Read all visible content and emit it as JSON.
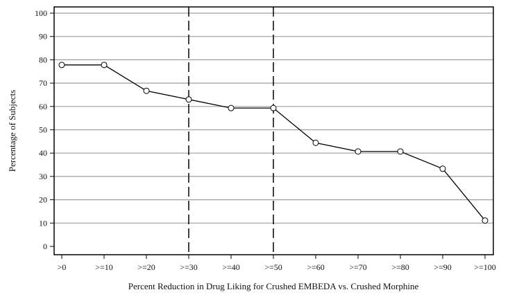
{
  "chart_data": {
    "type": "line",
    "title": "",
    "xlabel": "Percent Reduction in Drug Liking for Crushed EMBEDA vs. Crushed Morphine",
    "ylabel": "Percentage of Subjects",
    "categories": [
      ">0",
      ">=10",
      ">=20",
      ">=30",
      ">=40",
      ">=50",
      ">=60",
      ">=70",
      ">=80",
      ">=90",
      ">=100"
    ],
    "values": [
      77.8,
      77.8,
      66.7,
      63.0,
      59.3,
      59.3,
      44.4,
      40.7,
      40.7,
      33.3,
      11.1
    ],
    "ylim": [
      0,
      100
    ],
    "yticks": [
      0,
      10,
      20,
      30,
      40,
      50,
      60,
      70,
      80,
      90,
      100
    ],
    "grid": "horizontal",
    "reference_lines": [
      ">=30",
      ">=50"
    ],
    "colors": {
      "line": "#000000",
      "grid": "#9e9e9e",
      "marker_fill": "#ffffff"
    }
  }
}
